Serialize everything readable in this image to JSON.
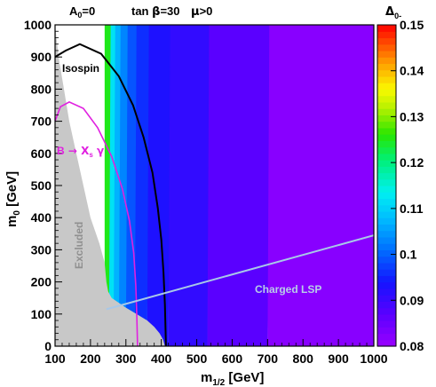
{
  "header": {
    "a0": "A",
    "a0_sub": "0",
    "a0_val": "=0",
    "tanb_pre": "tan ",
    "tanb_sym": "β",
    "tanb_val": "=30",
    "mu_sym": "μ",
    "mu_val": ">0"
  },
  "axes": {
    "xlabel_main": "m",
    "xlabel_sub": "1/2",
    "xlabel_unit": " [GeV]",
    "ylabel_main": "m",
    "ylabel_sub": "0",
    "ylabel_unit": " [GeV]"
  },
  "colorbar": {
    "title_main": "Δ",
    "title_sub": "0-",
    "ticks": [
      "0.15",
      "0.14",
      "0.13",
      "0.12",
      "0.11",
      "0.1",
      "0.09",
      "0.08"
    ]
  },
  "annotations": {
    "isospin": "Isospin",
    "bsg_b": "B",
    "bsg_arrow": " → X",
    "bsg_sub": "s",
    "bsg_gamma": " γ",
    "excluded": "Excluded",
    "charged_lsp": "Charged LSP"
  },
  "colors": {
    "excluded": "#c8c8c8",
    "isospin_contour": "#000000",
    "bsg_contour": "#e020e0",
    "charged_lsp_line": "#a8c8e8"
  },
  "chart_data": {
    "type": "heatmap",
    "title": "",
    "xlabel": "m1/2 [GeV]",
    "ylabel": "m0 [GeV]",
    "xlim": [
      100,
      1000
    ],
    "ylim": [
      0,
      1000
    ],
    "x_ticks": [
      100,
      200,
      300,
      400,
      500,
      600,
      700,
      800,
      900,
      1000
    ],
    "y_ticks": [
      0,
      100,
      200,
      300,
      400,
      500,
      600,
      700,
      800,
      900,
      1000
    ],
    "z_label": "Δ0-",
    "zlim": [
      0.08,
      0.15
    ],
    "bands_by_x": [
      {
        "x_min": 700,
        "x_max": 1000,
        "value": 0.082
      },
      {
        "x_min": 530,
        "x_max": 700,
        "value": 0.087
      },
      {
        "x_min": 420,
        "x_max": 530,
        "value": 0.091
      },
      {
        "x_min": 360,
        "x_max": 420,
        "value": 0.093
      },
      {
        "x_min": 325,
        "x_max": 360,
        "value": 0.096
      },
      {
        "x_min": 300,
        "x_max": 325,
        "value": 0.099
      },
      {
        "x_min": 280,
        "x_max": 300,
        "value": 0.103
      },
      {
        "x_min": 265,
        "x_max": 280,
        "value": 0.107
      },
      {
        "x_min": 252,
        "x_max": 265,
        "value": 0.112
      },
      {
        "x_min": 240,
        "x_max": 252,
        "value": 0.125
      }
    ],
    "excluded_region_boundary": [
      [
        100,
        1000
      ],
      [
        110,
        900
      ],
      [
        125,
        800
      ],
      [
        140,
        700
      ],
      [
        160,
        600
      ],
      [
        180,
        500
      ],
      [
        200,
        400
      ],
      [
        225,
        320
      ],
      [
        240,
        260
      ],
      [
        245,
        200
      ],
      [
        250,
        170
      ],
      [
        260,
        150
      ],
      [
        300,
        120
      ],
      [
        330,
        100
      ],
      [
        360,
        80
      ],
      [
        380,
        60
      ],
      [
        395,
        40
      ],
      [
        405,
        20
      ],
      [
        410,
        0
      ]
    ],
    "isospin_contour": [
      [
        100,
        900
      ],
      [
        130,
        920
      ],
      [
        170,
        940
      ],
      [
        230,
        910
      ],
      [
        280,
        840
      ],
      [
        320,
        750
      ],
      [
        350,
        650
      ],
      [
        375,
        540
      ],
      [
        390,
        430
      ],
      [
        400,
        330
      ],
      [
        406,
        230
      ],
      [
        410,
        130
      ],
      [
        413,
        0
      ]
    ],
    "bsg_contour": [
      [
        100,
        700
      ],
      [
        115,
        745
      ],
      [
        140,
        760
      ],
      [
        180,
        740
      ],
      [
        220,
        680
      ],
      [
        260,
        590
      ],
      [
        290,
        490
      ],
      [
        310,
        390
      ],
      [
        322,
        290
      ],
      [
        328,
        190
      ],
      [
        331,
        90
      ],
      [
        333,
        0
      ]
    ],
    "charged_lsp_line": [
      [
        245,
        115
      ],
      [
        1000,
        345
      ]
    ]
  }
}
